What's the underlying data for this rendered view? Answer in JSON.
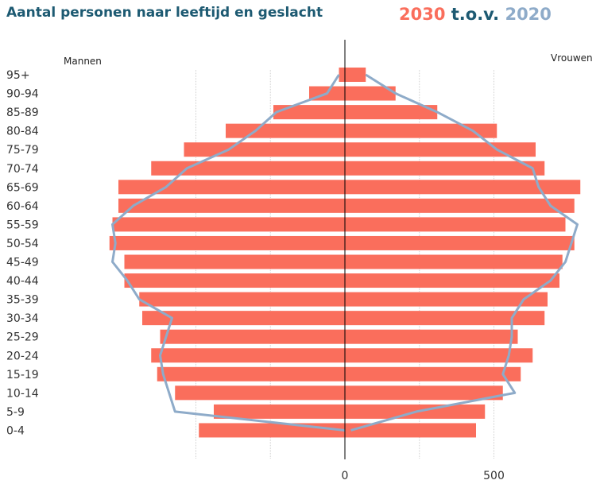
{
  "title": "Aantal personen naar leeftijd en geslacht",
  "legend": {
    "a": "2030",
    "mid": "t.o.v.",
    "b": "2020"
  },
  "colors": {
    "bars_2030": "#fa6e5c",
    "line_2020": "#8eabc9",
    "title": "#1d5a72",
    "grid": "#d0d0d0",
    "axis": "#000000"
  },
  "chart_data": {
    "type": "bar",
    "orientation": "horizontal-population-pyramid",
    "title": "Aantal personen naar leeftijd en geslacht",
    "left_label": "Mannen",
    "right_label": "Vrouwen",
    "categories": [
      "0-4",
      "5-9",
      "10-14",
      "15-19",
      "20-24",
      "25-29",
      "30-34",
      "35-39",
      "40-44",
      "45-49",
      "50-54",
      "55-59",
      "60-64",
      "65-69",
      "70-74",
      "75-79",
      "80-84",
      "85-89",
      "90-94",
      "95+"
    ],
    "series": [
      {
        "name": "2030",
        "style": "bars",
        "men": [
          490,
          440,
          570,
          630,
          650,
          620,
          680,
          690,
          740,
          740,
          790,
          780,
          760,
          760,
          650,
          540,
          400,
          240,
          120,
          20
        ],
        "women": [
          440,
          470,
          530,
          590,
          630,
          580,
          670,
          680,
          720,
          730,
          770,
          740,
          770,
          790,
          670,
          640,
          510,
          310,
          170,
          70
        ]
      },
      {
        "name": "2020",
        "style": "line",
        "men": [
          0,
          570,
          590,
          610,
          620,
          600,
          580,
          690,
          730,
          780,
          770,
          780,
          710,
          600,
          530,
          390,
          300,
          230,
          60,
          20
        ],
        "women": [
          20,
          240,
          570,
          530,
          550,
          560,
          560,
          600,
          690,
          740,
          760,
          780,
          690,
          650,
          630,
          510,
          430,
          310,
          170,
          70
        ]
      }
    ],
    "xticks": [
      "0",
      "500"
    ],
    "xlim": [
      -790,
      790
    ],
    "grid": true
  }
}
